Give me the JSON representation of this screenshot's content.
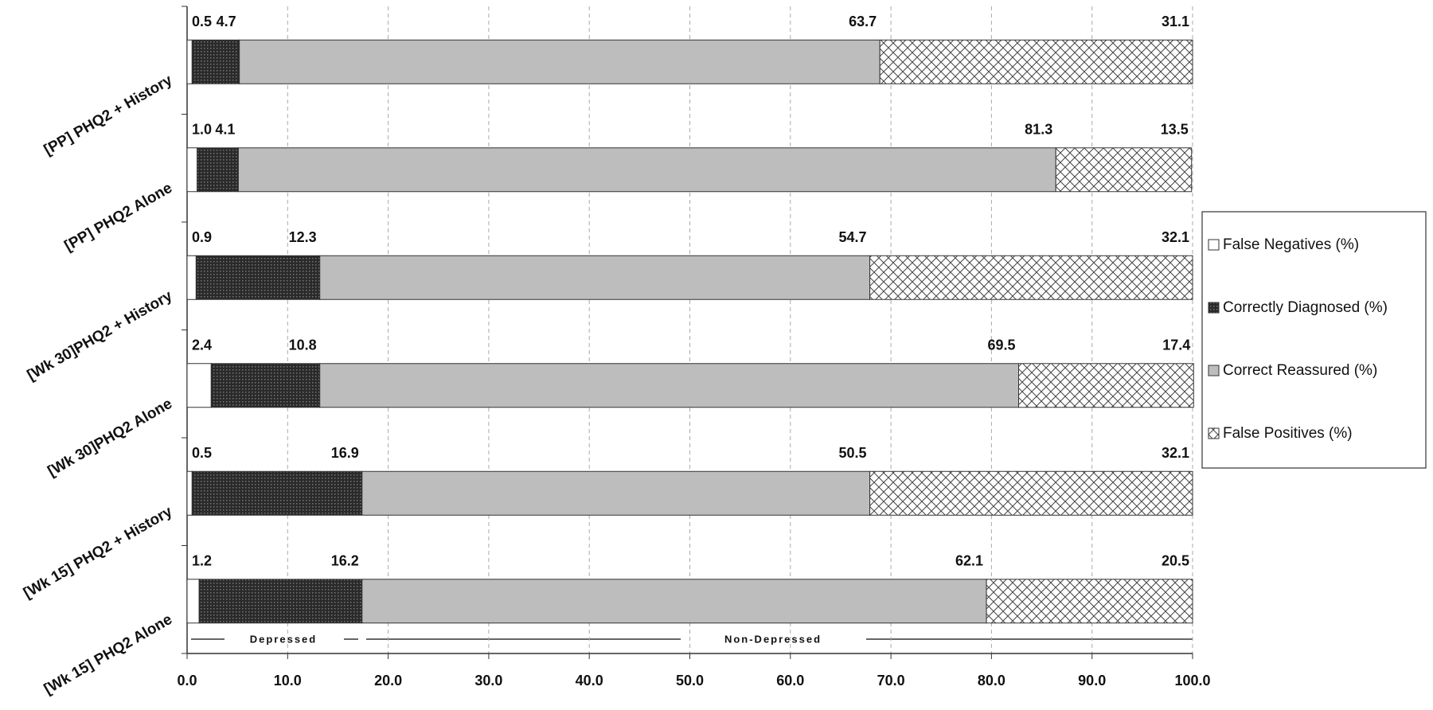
{
  "chart_data": {
    "type": "stacked_barh",
    "categories": [
      "[PP] PHQ2 + History",
      "[PP] PHQ2 Alone",
      "[Wk 30]PHQ2 + History",
      "[Wk 30]PHQ2 Alone",
      "[Wk 15] PHQ2 + History",
      "[Wk 15] PHQ2 Alone"
    ],
    "series": [
      {
        "name": "False Negatives (%)",
        "color": "#ffffff",
        "pattern": "none",
        "values": [
          0.5,
          1.0,
          0.9,
          2.4,
          0.5,
          1.2
        ],
        "value_labels": [
          "0.5",
          "1.0",
          "0.9",
          "2.4",
          "0.5",
          "1.2"
        ]
      },
      {
        "name": "Correctly Diagnosed (%)",
        "color": "#2a2a2a",
        "pattern": "dots",
        "values": [
          4.7,
          4.1,
          12.3,
          10.8,
          16.9,
          16.2
        ]
      },
      {
        "name": "Correct Reassured (%)",
        "color": "#bdbdbd",
        "pattern": "none",
        "values": [
          63.7,
          81.3,
          54.7,
          69.5,
          50.5,
          62.1
        ]
      },
      {
        "name": "False Positives (%)",
        "color": "#ffffff",
        "pattern": "crosshatch",
        "values": [
          31.1,
          13.5,
          32.1,
          17.4,
          32.1,
          20.5
        ]
      }
    ],
    "xlim": [
      0,
      100
    ],
    "xticks": [
      {
        "value": 0,
        "label": "0.0"
      },
      {
        "value": 10,
        "label": "10.0"
      },
      {
        "value": 20,
        "label": "20.0"
      },
      {
        "value": 30,
        "label": "30.0"
      },
      {
        "value": 40,
        "label": "40.0"
      },
      {
        "value": 50,
        "label": "50.0"
      },
      {
        "value": 60,
        "label": "60.0"
      },
      {
        "value": 70,
        "label": "70.0"
      },
      {
        "value": 80,
        "label": "80.0"
      },
      {
        "value": 90,
        "label": "90.0"
      },
      {
        "value": 100,
        "label": "100.0"
      }
    ],
    "grid": true,
    "legend": "right",
    "annotations": [
      "Depressed",
      "Non-Depressed"
    ]
  }
}
